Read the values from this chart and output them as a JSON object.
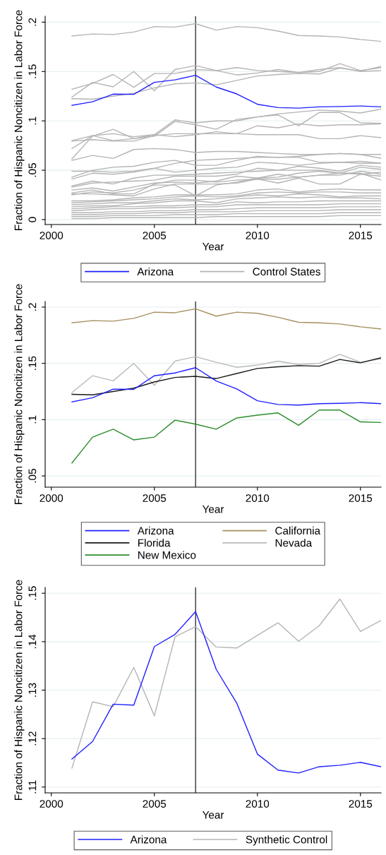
{
  "chart_data": [
    {
      "type": "line",
      "xlabel": "Year",
      "ylabel": "Fraction of Hispanic Noncitizen in Labor Force",
      "x": [
        2001,
        2002,
        2003,
        2004,
        2005,
        2006,
        2007,
        2008,
        2009,
        2010,
        2011,
        2012,
        2013,
        2014,
        2015,
        2016
      ],
      "xlim": [
        1999.7,
        2016
      ],
      "xticks": [
        2000,
        2005,
        2010,
        2015
      ],
      "ylim": [
        -0.005,
        0.206
      ],
      "yticks": [
        0,
        {
          "value": 0.05,
          "label": ".05"
        },
        {
          "value": 0.1,
          "label": ".1"
        },
        {
          "value": 0.15,
          "label": ".15"
        },
        {
          "value": 0.2,
          "label": ".2"
        }
      ],
      "grid": "y",
      "legend": "bottom",
      "ref_lines": [
        {
          "axis": "x",
          "value": 2007,
          "color": "#333333"
        }
      ],
      "series": [
        {
          "name": "Arizona",
          "color": "#1f1fff",
          "values": [
            0.1158,
            0.1194,
            0.1271,
            0.1269,
            0.139,
            0.1415,
            0.1462,
            0.1343,
            0.1273,
            0.1168,
            0.1135,
            0.1129,
            0.1142,
            0.1145,
            0.1151,
            0.1142
          ]
        },
        {
          "name": "Control States",
          "color": "#b4b4b4",
          "values": [
            0.186,
            0.188,
            0.1875,
            0.19,
            0.1955,
            0.195,
            0.1985,
            0.192,
            0.1955,
            0.1945,
            0.191,
            0.1865,
            0.186,
            0.185,
            0.1825,
            0.1805
          ]
        },
        {
          "color": "#b4b4b4",
          "values": [
            0.1225,
            0.122,
            0.125,
            0.128,
            0.1335,
            0.1375,
            0.1385,
            0.1365,
            0.141,
            0.1455,
            0.147,
            0.148,
            0.1475,
            0.1535,
            0.1505,
            0.155
          ]
        },
        {
          "color": "#b4b4b4",
          "values": [
            0.124,
            0.139,
            0.1345,
            0.15,
            0.1305,
            0.152,
            0.156,
            0.151,
            0.1465,
            0.1485,
            0.152,
            0.149,
            0.15,
            0.158,
            0.151,
            0.154
          ]
        },
        {
          "color": "#b4b4b4",
          "values": [
            0.132,
            0.138,
            0.147,
            0.134,
            0.148,
            0.148,
            0.152,
            0.151,
            0.154,
            0.151,
            0.15,
            0.149,
            0.152,
            0.154,
            0.15,
            0.151
          ]
        },
        {
          "color": "#b4b4b4",
          "values": [
            0.0615,
            0.0845,
            0.0915,
            0.082,
            0.0845,
            0.0995,
            0.096,
            0.0915,
            0.1015,
            0.104,
            0.106,
            0.095,
            0.1085,
            0.1085,
            0.098,
            0.0975
          ]
        },
        {
          "color": "#b4b4b4",
          "values": [
            0.08,
            0.085,
            0.087,
            0.084,
            0.086,
            0.101,
            0.098,
            0.1,
            0.1,
            0.104,
            0.107,
            0.109,
            0.111,
            0.11,
            0.108,
            0.112
          ]
        },
        {
          "color": "#b4b4b4",
          "values": [
            0.0795,
            0.081,
            0.0795,
            0.0795,
            0.085,
            0.087,
            0.087,
            0.087,
            0.087,
            0.086,
            0.086,
            0.086,
            0.082,
            0.082,
            0.085,
            0.083
          ]
        },
        {
          "color": "#b4b4b4",
          "values": [
            0.072,
            0.085,
            0.08,
            0.082,
            0.086,
            0.084,
            0.086,
            0.089,
            0.087,
            0.095,
            0.093,
            0.097,
            0.095,
            0.096,
            0.096,
            0.097
          ]
        },
        {
          "color": "#b4b4b4",
          "values": [
            0.06,
            0.065,
            0.062,
            0.071,
            0.072,
            0.071,
            0.068,
            0.069,
            0.069,
            0.068,
            0.067,
            0.066,
            0.066,
            0.067,
            0.066,
            0.066
          ]
        },
        {
          "color": "#b4b4b4",
          "values": [
            0.049,
            0.049,
            0.048,
            0.049,
            0.052,
            0.057,
            0.06,
            0.061,
            0.062,
            0.063,
            0.063,
            0.064,
            0.066,
            0.067,
            0.066,
            0.062
          ]
        },
        {
          "color": "#b4b4b4",
          "values": [
            0.043,
            0.05,
            0.053,
            0.054,
            0.058,
            0.06,
            0.055,
            0.055,
            0.06,
            0.064,
            0.063,
            0.063,
            0.058,
            0.058,
            0.059,
            0.057
          ]
        },
        {
          "color": "#b4b4b4",
          "values": [
            0.041,
            0.047,
            0.046,
            0.048,
            0.052,
            0.048,
            0.05,
            0.052,
            0.053,
            0.058,
            0.057,
            0.055,
            0.057,
            0.058,
            0.057,
            0.057
          ]
        },
        {
          "color": "#b4b4b4",
          "values": [
            0.034,
            0.039,
            0.036,
            0.042,
            0.045,
            0.045,
            0.046,
            0.047,
            0.048,
            0.049,
            0.05,
            0.054,
            0.052,
            0.049,
            0.055,
            0.053
          ]
        },
        {
          "color": "#b4b4b4",
          "values": [
            0.033,
            0.037,
            0.038,
            0.039,
            0.04,
            0.044,
            0.044,
            0.044,
            0.046,
            0.052,
            0.05,
            0.05,
            0.05,
            0.047,
            0.053,
            0.051
          ]
        },
        {
          "color": "#b4b4b4",
          "values": [
            0.03,
            0.032,
            0.029,
            0.033,
            0.037,
            0.038,
            0.037,
            0.039,
            0.044,
            0.042,
            0.046,
            0.043,
            0.045,
            0.047,
            0.046,
            0.048
          ]
        },
        {
          "color": "#b4b4b4",
          "values": [
            0.027,
            0.03,
            0.026,
            0.026,
            0.036,
            0.04,
            0.04,
            0.038,
            0.04,
            0.041,
            0.037,
            0.042,
            0.036,
            0.036,
            0.046,
            0.044
          ]
        },
        {
          "color": "#b4b4b4",
          "values": [
            0.025,
            0.028,
            0.027,
            0.03,
            0.035,
            0.035,
            0.024,
            0.035,
            0.038,
            0.042,
            0.043,
            0.047,
            0.049,
            0.047,
            0.047,
            0.04
          ]
        },
        {
          "color": "#b4b4b4",
          "values": [
            0.026,
            0.026,
            0.025,
            0.024,
            0.031,
            0.036,
            0.036,
            0.036,
            0.037,
            0.041,
            0.041,
            0.043,
            0.045,
            0.045,
            0.049,
            0.046
          ]
        },
        {
          "color": "#b4b4b4",
          "values": [
            0.019,
            0.019,
            0.02,
            0.022,
            0.023,
            0.025,
            0.025,
            0.025,
            0.026,
            0.03,
            0.031,
            0.028,
            0.03,
            0.031,
            0.03,
            0.03
          ]
        },
        {
          "color": "#b4b4b4",
          "values": [
            0.017,
            0.018,
            0.019,
            0.02,
            0.021,
            0.023,
            0.024,
            0.023,
            0.024,
            0.027,
            0.028,
            0.027,
            0.028,
            0.028,
            0.027,
            0.027
          ]
        },
        {
          "color": "#b4b4b4",
          "values": [
            0.015,
            0.016,
            0.017,
            0.017,
            0.019,
            0.021,
            0.02,
            0.021,
            0.023,
            0.025,
            0.024,
            0.026,
            0.025,
            0.023,
            0.024,
            0.024
          ]
        },
        {
          "color": "#b4b4b4",
          "values": [
            0.013,
            0.014,
            0.014,
            0.016,
            0.017,
            0.019,
            0.019,
            0.017,
            0.021,
            0.022,
            0.023,
            0.022,
            0.023,
            0.022,
            0.022,
            0.021
          ]
        },
        {
          "color": "#b4b4b4",
          "values": [
            0.011,
            0.012,
            0.013,
            0.013,
            0.014,
            0.014,
            0.015,
            0.015,
            0.018,
            0.017,
            0.018,
            0.018,
            0.019,
            0.019,
            0.019,
            0.019
          ]
        },
        {
          "color": "#b4b4b4",
          "values": [
            0.009,
            0.01,
            0.011,
            0.011,
            0.012,
            0.012,
            0.013,
            0.013,
            0.015,
            0.015,
            0.015,
            0.015,
            0.015,
            0.016,
            0.016,
            0.016
          ]
        },
        {
          "color": "#b4b4b4",
          "values": [
            0.007,
            0.007,
            0.008,
            0.008,
            0.009,
            0.009,
            0.01,
            0.01,
            0.011,
            0.012,
            0.012,
            0.012,
            0.012,
            0.013,
            0.013,
            0.013
          ]
        },
        {
          "color": "#b4b4b4",
          "values": [
            0.005,
            0.005,
            0.006,
            0.006,
            0.007,
            0.007,
            0.008,
            0.008,
            0.008,
            0.009,
            0.009,
            0.009,
            0.009,
            0.01,
            0.01,
            0.01
          ]
        },
        {
          "color": "#b4b4b4",
          "values": [
            0.003,
            0.003,
            0.004,
            0.004,
            0.004,
            0.005,
            0.005,
            0.005,
            0.006,
            0.006,
            0.006,
            0.006,
            0.006,
            0.007,
            0.007,
            0.007
          ]
        },
        {
          "color": "#b4b4b4",
          "values": [
            0.001,
            0.001,
            0.002,
            0.002,
            0.002,
            0.002,
            0.002,
            0.003,
            0.003,
            0.003,
            0.003,
            0.003,
            0.003,
            0.004,
            0.004,
            0.004
          ]
        }
      ]
    },
    {
      "type": "line",
      "xlabel": "Year",
      "ylabel": "Fraction of Hispanic Noncitizen in Labor Force",
      "x": [
        2001,
        2002,
        2003,
        2004,
        2005,
        2006,
        2007,
        2008,
        2009,
        2010,
        2011,
        2012,
        2013,
        2014,
        2015,
        2016
      ],
      "xlim": [
        1999.7,
        2016
      ],
      "xticks": [
        2000,
        2005,
        2010,
        2015
      ],
      "ylim": [
        0.04,
        0.205
      ],
      "yticks": [
        {
          "value": 0.05,
          "label": ".05"
        },
        {
          "value": 0.1,
          "label": ".1"
        },
        {
          "value": 0.15,
          "label": ".15"
        },
        {
          "value": 0.2,
          "label": ".2"
        }
      ],
      "grid": "y",
      "legend": "bottom",
      "ref_lines": [
        {
          "axis": "x",
          "value": 2007,
          "color": "#333333"
        }
      ],
      "series": [
        {
          "name": "Arizona",
          "color": "#1f1fff",
          "values": [
            0.1158,
            0.1194,
            0.1271,
            0.1269,
            0.139,
            0.1415,
            0.1462,
            0.1343,
            0.1273,
            0.1168,
            0.1135,
            0.1129,
            0.1142,
            0.1145,
            0.1151,
            0.1142
          ]
        },
        {
          "name": "California",
          "color": "#a58f5e",
          "values": [
            0.186,
            0.188,
            0.1875,
            0.19,
            0.1955,
            0.195,
            0.1985,
            0.192,
            0.1955,
            0.1945,
            0.191,
            0.1865,
            0.186,
            0.185,
            0.1825,
            0.1805
          ]
        },
        {
          "name": "Florida",
          "color": "#1a1a1a",
          "values": [
            0.1225,
            0.122,
            0.125,
            0.128,
            0.1335,
            0.1375,
            0.1385,
            0.1365,
            0.141,
            0.1455,
            0.147,
            0.148,
            0.1475,
            0.1535,
            0.1505,
            0.155
          ]
        },
        {
          "name": "Nevada",
          "color": "#bababa",
          "values": [
            0.124,
            0.139,
            0.1345,
            0.15,
            0.1305,
            0.152,
            0.156,
            0.151,
            0.1465,
            0.1485,
            0.152,
            0.149,
            0.15,
            0.158,
            0.151,
            0.154
          ]
        },
        {
          "name": "New Mexico",
          "color": "#2a8c2a",
          "values": [
            0.0615,
            0.0845,
            0.0915,
            0.082,
            0.0845,
            0.0995,
            0.096,
            0.0915,
            0.1015,
            0.104,
            0.106,
            0.095,
            0.1085,
            0.1085,
            0.098,
            0.0975
          ]
        }
      ]
    },
    {
      "type": "line",
      "xlabel": "Year",
      "ylabel": "Fraction of Hispanic Noncitizen in Labor Force",
      "x": [
        2001,
        2002,
        2003,
        2004,
        2005,
        2006,
        2007,
        2008,
        2009,
        2010,
        2011,
        2012,
        2013,
        2014,
        2015,
        2016
      ],
      "xlim": [
        1999.7,
        2016
      ],
      "xticks": [
        2000,
        2005,
        2010,
        2015
      ],
      "ylim": [
        0.1088,
        0.1512
      ],
      "yticks": [
        {
          "value": 0.11,
          "label": ".11"
        },
        {
          "value": 0.12,
          "label": ".12"
        },
        {
          "value": 0.13,
          "label": ".13"
        },
        {
          "value": 0.14,
          "label": ".14"
        },
        {
          "value": 0.15,
          "label": ".15"
        }
      ],
      "grid": "y",
      "legend": "bottom",
      "ref_lines": [
        {
          "axis": "x",
          "value": 2007,
          "color": "#333333"
        }
      ],
      "series": [
        {
          "name": "Arizona",
          "color": "#1f1fff",
          "values": [
            0.1158,
            0.1194,
            0.1271,
            0.1269,
            0.139,
            0.1415,
            0.1462,
            0.1343,
            0.1273,
            0.1168,
            0.1135,
            0.1129,
            0.1142,
            0.1145,
            0.1151,
            0.1142
          ]
        },
        {
          "name": "Synthetic Control",
          "color": "#b4b4b4",
          "values": [
            0.1139,
            0.1276,
            0.1266,
            0.1347,
            0.1247,
            0.141,
            0.1431,
            0.1389,
            0.1387,
            0.1413,
            0.1439,
            0.1401,
            0.1433,
            0.1488,
            0.1421,
            0.1444
          ]
        }
      ]
    }
  ]
}
